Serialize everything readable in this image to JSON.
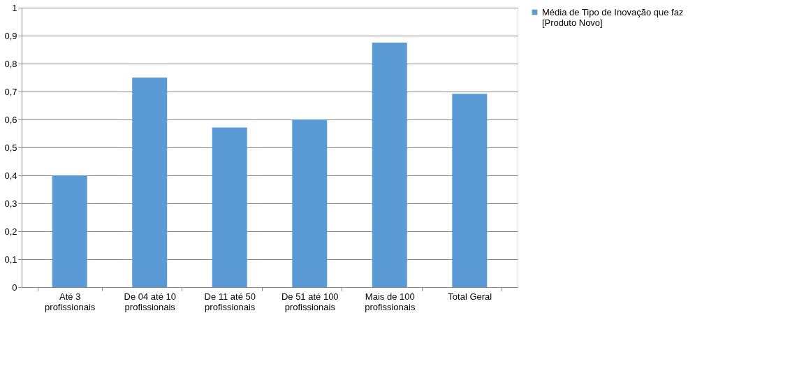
{
  "chart_data": {
    "type": "bar",
    "categories": [
      "Até 3 profissionais",
      "De 04 até 10 profissionais",
      "De 11 até 50 profissionais",
      "De 51 até 100 profissionais",
      "Mais de 100 profissionais",
      "Total Geral"
    ],
    "series": [
      {
        "name": "Média de Tipo de Inovação que faz [Produto Novo]",
        "color": "#5b9bd5",
        "values": [
          0.4,
          0.75,
          0.571,
          0.6,
          0.875,
          0.692
        ]
      }
    ],
    "ylim": [
      0,
      1
    ],
    "yticks": [
      0,
      {
        "value": 0.1,
        "label": "0,1"
      },
      {
        "value": 0.2,
        "label": "0,2"
      },
      {
        "value": 0.3,
        "label": "0,3"
      },
      {
        "value": 0.4,
        "label": "0,4"
      },
      {
        "value": 0.5,
        "label": "0,5"
      },
      {
        "value": 0.6,
        "label": "0,6"
      },
      {
        "value": 0.7,
        "label": "0,7"
      },
      {
        "value": 0.8,
        "label": "0,8"
      },
      {
        "value": 0.9,
        "label": "0,9"
      },
      1
    ],
    "grid": "y",
    "legend": "right"
  }
}
